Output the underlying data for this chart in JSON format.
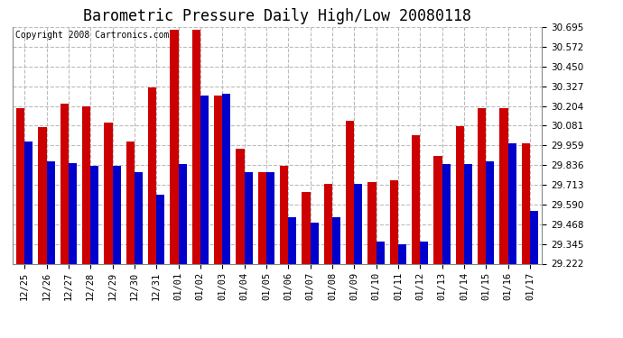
{
  "title": "Barometric Pressure Daily High/Low 20080118",
  "copyright": "Copyright 2008 Cartronics.com",
  "categories": [
    "12/25",
    "12/26",
    "12/27",
    "12/28",
    "12/29",
    "12/30",
    "12/31",
    "01/01",
    "01/02",
    "01/03",
    "01/04",
    "01/05",
    "01/06",
    "01/07",
    "01/08",
    "01/09",
    "01/10",
    "01/11",
    "01/12",
    "01/13",
    "01/14",
    "01/15",
    "01/16",
    "01/17"
  ],
  "highs": [
    30.19,
    30.07,
    30.22,
    30.2,
    30.1,
    29.98,
    30.32,
    30.68,
    30.68,
    30.27,
    29.94,
    29.79,
    29.83,
    29.67,
    29.72,
    30.11,
    29.73,
    29.74,
    30.02,
    29.89,
    30.08,
    30.19,
    30.19,
    29.97
  ],
  "lows": [
    29.98,
    29.86,
    29.85,
    29.83,
    29.83,
    29.79,
    29.65,
    29.84,
    30.27,
    30.28,
    29.79,
    29.79,
    29.51,
    29.48,
    29.51,
    29.72,
    29.36,
    29.34,
    29.36,
    29.84,
    29.84,
    29.86,
    29.97,
    29.55
  ],
  "high_color": "#cc0000",
  "low_color": "#0000cc",
  "ylim_min": 29.222,
  "ylim_max": 30.695,
  "yticks": [
    29.222,
    29.345,
    29.468,
    29.59,
    29.713,
    29.836,
    29.959,
    30.081,
    30.204,
    30.327,
    30.45,
    30.572,
    30.695
  ],
  "background_color": "#ffffff",
  "plot_bg_color": "#ffffff",
  "grid_color": "#bbbbbb",
  "title_fontsize": 12,
  "copyright_fontsize": 7,
  "tick_fontsize": 7.5,
  "bar_width": 0.38
}
